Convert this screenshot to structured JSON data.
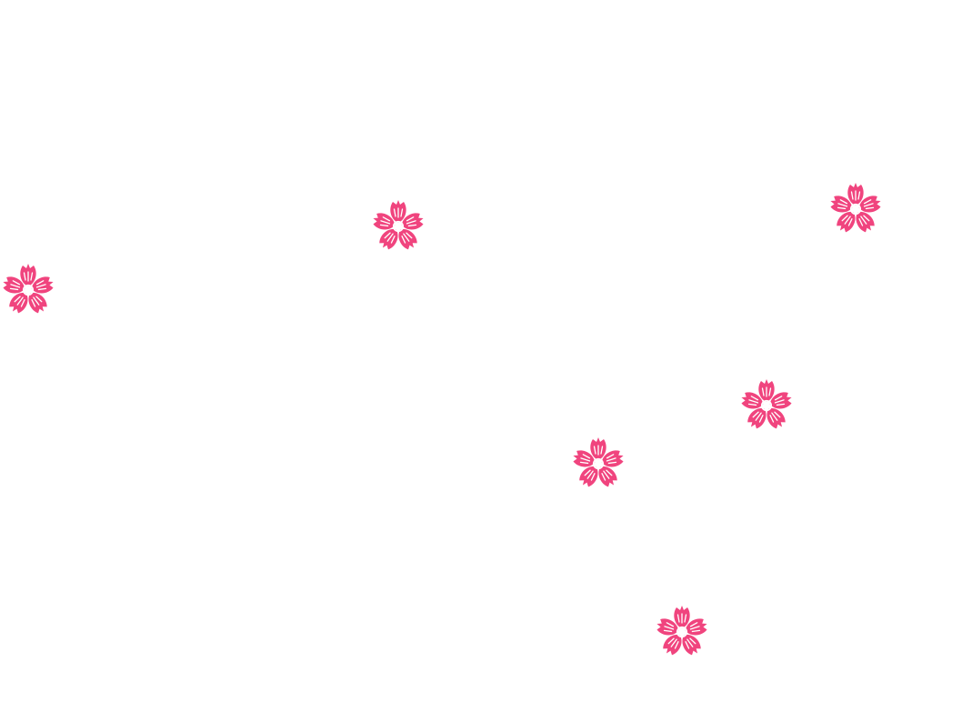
{
  "scene": {
    "background_color": "#ffffff",
    "item_icon": "cherry-blossom-icon",
    "item_color": "#f0447e",
    "item_detail_color": "#ffffff",
    "item_count": 6
  }
}
